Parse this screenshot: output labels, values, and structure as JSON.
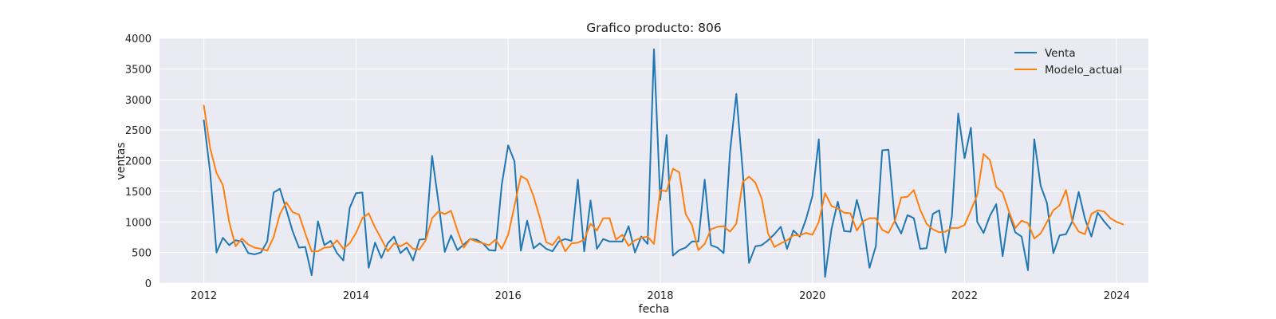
{
  "chart_data": {
    "type": "line",
    "title": "Grafico producto: 806",
    "xlabel": "fecha",
    "ylabel": "ventas",
    "xlim": [
      "2011-06-01",
      "2024-06-01"
    ],
    "ylim": [
      0,
      4000
    ],
    "x_ticks": [
      "2012",
      "2014",
      "2016",
      "2018",
      "2020",
      "2022",
      "2024"
    ],
    "y_ticks": [
      "0",
      "500",
      "1000",
      "1500",
      "2000",
      "2500",
      "3000",
      "3500",
      "4000"
    ],
    "grid": true,
    "legend_position": "top-right",
    "x_start": "2012-01",
    "x_step": "month",
    "series": [
      {
        "name": "Venta",
        "color": "#1f77b4",
        "values": [
          2660,
          1800,
          500,
          740,
          620,
          700,
          680,
          490,
          470,
          500,
          680,
          1480,
          1540,
          1200,
          850,
          580,
          590,
          130,
          1010,
          620,
          690,
          490,
          370,
          1230,
          1470,
          1480,
          250,
          660,
          410,
          650,
          760,
          490,
          580,
          370,
          710,
          720,
          2080,
          1330,
          510,
          780,
          540,
          630,
          720,
          710,
          650,
          540,
          530,
          1610,
          2250,
          1990,
          530,
          1020,
          570,
          650,
          560,
          520,
          680,
          720,
          690,
          1690,
          520,
          1350,
          560,
          720,
          680,
          680,
          680,
          930,
          500,
          760,
          640,
          3820,
          1360,
          2420,
          450,
          540,
          580,
          680,
          680,
          1690,
          620,
          580,
          490,
          2150,
          3090,
          1830,
          330,
          600,
          620,
          700,
          800,
          920,
          560,
          860,
          760,
          1050,
          1420,
          2350,
          100,
          880,
          1330,
          850,
          840,
          1360,
          970,
          250,
          600,
          2170,
          2180,
          1010,
          810,
          1110,
          1060,
          560,
          570,
          1130,
          1190,
          500,
          1090,
          2770,
          2040,
          2540,
          1000,
          820,
          1100,
          1290,
          440,
          1140,
          830,
          760,
          210,
          2350,
          1590,
          1310,
          490,
          780,
          800,
          1010,
          1490,
          1050,
          760,
          1150,
          1010,
          890
        ]
      },
      {
        "name": "Modelo_actual",
        "color": "#ff7f0e",
        "values": [
          2900,
          2200,
          1800,
          1600,
          1000,
          600,
          730,
          630,
          580,
          560,
          530,
          750,
          1130,
          1320,
          1160,
          1120,
          810,
          520,
          520,
          580,
          590,
          700,
          560,
          650,
          820,
          1060,
          1140,
          910,
          720,
          520,
          650,
          600,
          660,
          560,
          550,
          700,
          1060,
          1170,
          1130,
          1180,
          860,
          580,
          720,
          680,
          650,
          620,
          710,
          560,
          790,
          1260,
          1750,
          1690,
          1420,
          1070,
          670,
          620,
          760,
          520,
          650,
          660,
          710,
          970,
          860,
          1060,
          1060,
          710,
          790,
          610,
          700,
          740,
          760,
          640,
          1520,
          1500,
          1870,
          1810,
          1130,
          950,
          540,
          640,
          880,
          920,
          930,
          840,
          970,
          1650,
          1740,
          1640,
          1380,
          810,
          590,
          650,
          700,
          780,
          780,
          820,
          790,
          1000,
          1470,
          1260,
          1220,
          1150,
          1140,
          860,
          1010,
          1060,
          1060,
          870,
          820,
          1020,
          1400,
          1410,
          1520,
          1200,
          970,
          880,
          830,
          840,
          900,
          900,
          950,
          1190,
          1440,
          2110,
          2010,
          1570,
          1480,
          1170,
          900,
          1020,
          980,
          730,
          810,
          1000,
          1190,
          1270,
          1520,
          1010,
          840,
          800,
          1130,
          1190,
          1170,
          1060,
          1000,
          960
        ]
      }
    ]
  }
}
